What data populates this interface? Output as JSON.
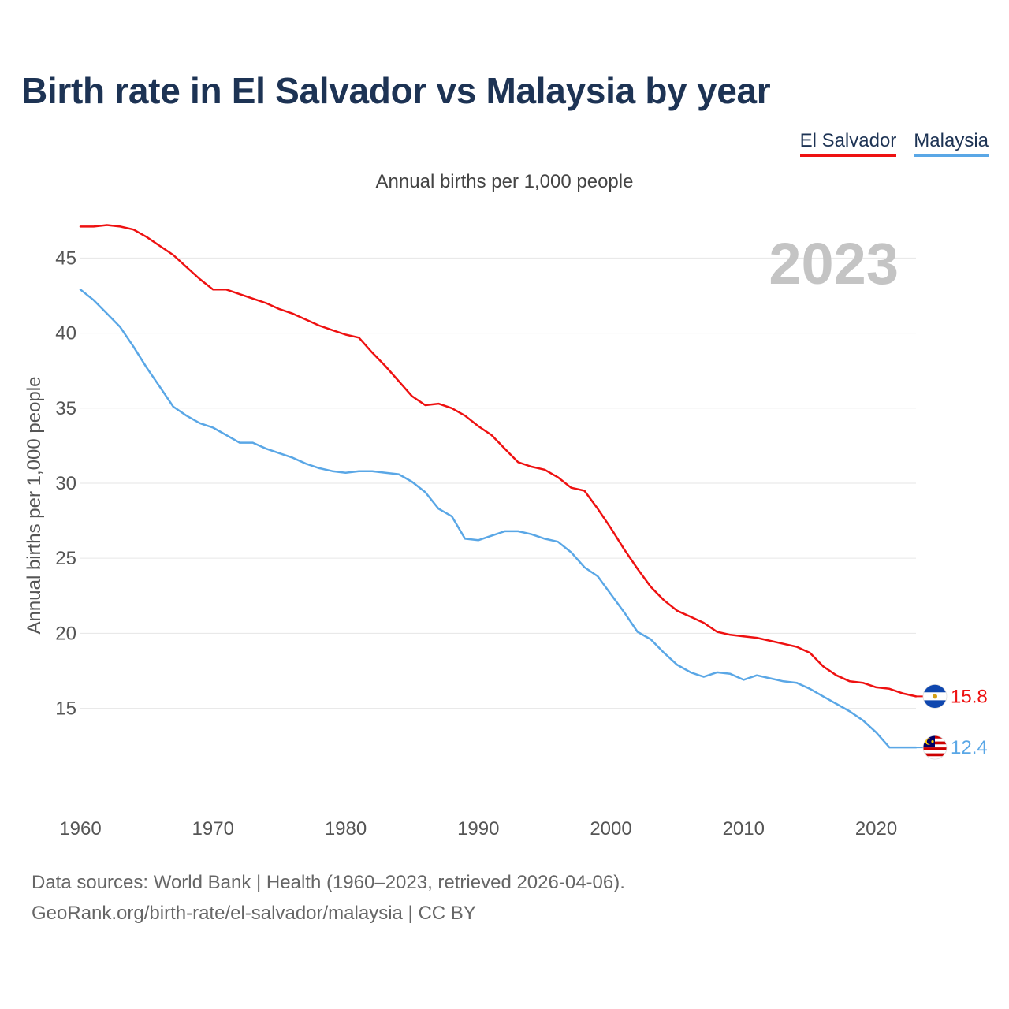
{
  "title": "Birth rate in El Salvador vs Malaysia by year",
  "subtitle": "Annual births per 1,000 people",
  "footer": {
    "sources": "Data sources: World Bank | Health (1960–2023, retrieved 2026-04-06).",
    "url": "GeoRank.org/birth-rate/el-salvador/malaysia | CC BY"
  },
  "chart_data": {
    "type": "line",
    "title": "Birth rate in El Salvador vs Malaysia by year",
    "subtitle": "Annual births per 1,000 people",
    "xlabel": "",
    "ylabel": "Annual births per 1,000 people",
    "year_label": "2023",
    "xlim": [
      1960,
      2023
    ],
    "ylim": [
      10.2,
      48.8
    ],
    "x_ticks": [
      1960,
      1970,
      1980,
      1990,
      2000,
      2010,
      2020
    ],
    "y_ticks": [
      15,
      20,
      25,
      30,
      35,
      40,
      45
    ],
    "grid": true,
    "legend_position": "top-right",
    "x": [
      1960,
      1961,
      1962,
      1963,
      1964,
      1965,
      1966,
      1967,
      1968,
      1969,
      1970,
      1971,
      1972,
      1973,
      1974,
      1975,
      1976,
      1977,
      1978,
      1979,
      1980,
      1981,
      1982,
      1983,
      1984,
      1985,
      1986,
      1987,
      1988,
      1989,
      1990,
      1991,
      1992,
      1993,
      1994,
      1995,
      1996,
      1997,
      1998,
      1999,
      2000,
      2001,
      2002,
      2003,
      2004,
      2005,
      2006,
      2007,
      2008,
      2009,
      2010,
      2011,
      2012,
      2013,
      2014,
      2015,
      2016,
      2017,
      2018,
      2019,
      2020,
      2021,
      2022,
      2023
    ],
    "series": [
      {
        "name": "El Salvador",
        "color": "#ee1111",
        "end_label": "15.8",
        "values": [
          47.1,
          47.1,
          47.2,
          47.1,
          46.9,
          46.4,
          45.8,
          45.2,
          44.4,
          43.6,
          42.9,
          42.9,
          42.6,
          42.3,
          42.0,
          41.6,
          41.3,
          40.9,
          40.5,
          40.2,
          39.9,
          39.7,
          38.7,
          37.8,
          36.8,
          35.8,
          35.2,
          35.3,
          35.0,
          34.5,
          33.8,
          33.2,
          32.3,
          31.4,
          31.1,
          30.9,
          30.4,
          29.7,
          29.5,
          28.3,
          27.0,
          25.6,
          24.3,
          23.1,
          22.2,
          21.5,
          21.1,
          20.7,
          20.1,
          19.9,
          19.8,
          19.7,
          19.5,
          19.3,
          19.1,
          18.7,
          17.8,
          17.2,
          16.8,
          16.7,
          16.4,
          16.3,
          16.0,
          15.8
        ]
      },
      {
        "name": "Malaysia",
        "color": "#5aa7e6",
        "end_label": "12.4",
        "values": [
          42.9,
          42.2,
          41.3,
          40.4,
          39.1,
          37.7,
          36.4,
          35.1,
          34.5,
          34.0,
          33.7,
          33.2,
          32.7,
          32.7,
          32.3,
          32.0,
          31.7,
          31.3,
          31.0,
          30.8,
          30.7,
          30.8,
          30.8,
          30.7,
          30.6,
          30.1,
          29.4,
          28.3,
          27.8,
          26.3,
          26.2,
          26.5,
          26.8,
          26.8,
          26.6,
          26.3,
          26.1,
          25.4,
          24.4,
          23.8,
          22.6,
          21.4,
          20.1,
          19.6,
          18.7,
          17.9,
          17.4,
          17.1,
          17.4,
          17.3,
          16.9,
          17.2,
          17.0,
          16.8,
          16.7,
          16.3,
          15.8,
          15.3,
          14.8,
          14.2,
          13.4,
          12.4,
          12.4,
          12.4
        ]
      }
    ]
  }
}
